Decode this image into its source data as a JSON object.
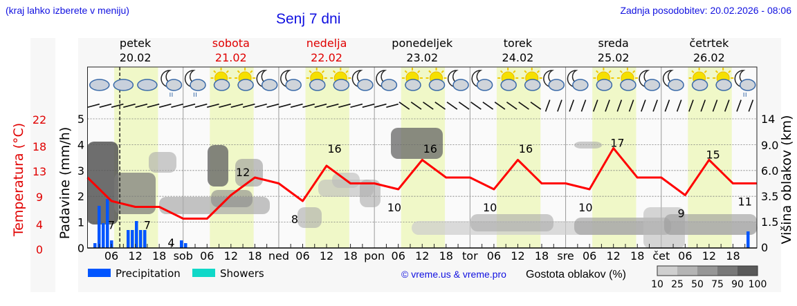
{
  "header": {
    "menu_hint": "(kraj lahko izberete v meniju)",
    "title": "Senj 7 dni",
    "last_update": "Zadnja posodobitev: 20.02.2026 - 08:06"
  },
  "days": [
    {
      "name": "petek",
      "date": "20.02",
      "weekend": false,
      "short": ""
    },
    {
      "name": "sobota",
      "date": "21.02",
      "weekend": true,
      "short": "sob"
    },
    {
      "name": "nedelja",
      "date": "22.02",
      "weekend": true,
      "short": "ned"
    },
    {
      "name": "ponedeljek",
      "date": "23.02",
      "weekend": false,
      "short": "pon"
    },
    {
      "name": "torek",
      "date": "24.02",
      "weekend": false,
      "short": "tor"
    },
    {
      "name": "sreda",
      "date": "25.02",
      "weekend": false,
      "short": "sre"
    },
    {
      "name": "četrtek",
      "date": "26.02",
      "weekend": false,
      "short": "čet"
    }
  ],
  "hour_ticks": [
    "06",
    "12",
    "18"
  ],
  "weather_icons": [
    "rain-cloud",
    "rain-cloud",
    "rain-cloud",
    "moon-cloud-rain",
    "moon-cloud-rain",
    "sun-cloud",
    "sun-cloud",
    "moon-cloud",
    "moon-cloud",
    "sun-cloud",
    "sun-cloud",
    "moon-cloud",
    "moon-cloud",
    "sun-cloud",
    "sun-cloud",
    "moon-cloud",
    "moon-cloud",
    "sun-cloud",
    "sun-cloud",
    "moon-cloud",
    "moon-cloud",
    "sun-cloud",
    "sun-cloud",
    "moon-cloud",
    "moon-cloud",
    "sun-cloud",
    "sun-cloud",
    "moon-cloud-rain"
  ],
  "axes": {
    "temp_label": "Temperatura (°C)",
    "temp_ticks": [
      "22",
      "18",
      "13",
      "9",
      "4",
      "0"
    ],
    "precip_label": "Padavine (mm/h)",
    "precip_ticks": [
      "5",
      "4",
      "3",
      "2",
      "1",
      "0"
    ],
    "cloud_label": "Višina oblakov (km)",
    "cloud_ticks": [
      "14",
      "9.0",
      "6.0",
      "3.5",
      "1.5",
      "0"
    ]
  },
  "legend": {
    "precipitation": "Precipitation",
    "showers": "Showers",
    "copyright": "© vreme.us & vreme.pro",
    "cloud_density": "Gostota oblakov (%)",
    "density_ticks": [
      "10",
      "25",
      "50",
      "75",
      "90",
      "100"
    ],
    "colors": {
      "precipitation": "#0055ff",
      "showers": "#10d8c8",
      "temperature": "#ff0000"
    }
  },
  "current_time_marker": "20.02 08:06",
  "chart_data": {
    "type": "line",
    "title": "Senj 7 dni",
    "xlabel": "",
    "ylabel": "Temperatura (°C)",
    "x": [
      "20.02 00",
      "20.02 06",
      "20.02 12",
      "20.02 18",
      "21.02 00",
      "21.02 06",
      "21.02 12",
      "21.02 18",
      "22.02 00",
      "22.02 06",
      "22.02 12",
      "22.02 18",
      "23.02 00",
      "23.02 06",
      "23.02 12",
      "23.02 18",
      "24.02 00",
      "24.02 06",
      "24.02 12",
      "24.02 18",
      "25.02 00",
      "25.02 06",
      "25.02 12",
      "25.02 18",
      "26.02 00",
      "26.02 06",
      "26.02 12",
      "26.02 18",
      "26.02 24"
    ],
    "series": [
      {
        "name": "Temperature",
        "values": [
          12,
          8,
          7,
          7,
          5,
          5,
          9,
          12,
          11,
          8,
          14,
          11,
          11,
          10,
          15,
          12,
          12,
          10,
          15,
          11,
          11,
          10,
          17,
          12,
          12,
          9,
          15,
          11,
          11
        ]
      },
      {
        "name": "Precipitation (mm/h)",
        "values": [
          0.3,
          1.9,
          0.3,
          0,
          0.1,
          0,
          0,
          0,
          0,
          0,
          0,
          0,
          0,
          0,
          0,
          0,
          0,
          0,
          0,
          0,
          0,
          0,
          0,
          0,
          0,
          0,
          0,
          0,
          0.6
        ]
      }
    ],
    "labels": [
      {
        "value": 7,
        "at": "20.02 06"
      },
      {
        "value": 7,
        "at": "20.02 15"
      },
      {
        "value": 4,
        "at": "20.02 21"
      },
      {
        "value": 12,
        "at": "21.02 15"
      },
      {
        "value": 8,
        "at": "22.02 04"
      },
      {
        "value": 16,
        "at": "22.02 14"
      },
      {
        "value": 10,
        "at": "23.02 05"
      },
      {
        "value": 16,
        "at": "23.02 14"
      },
      {
        "value": 10,
        "at": "24.02 05"
      },
      {
        "value": 16,
        "at": "24.02 14"
      },
      {
        "value": 10,
        "at": "25.02 05"
      },
      {
        "value": 17,
        "at": "25.02 13"
      },
      {
        "value": 9,
        "at": "26.02 05"
      },
      {
        "value": 15,
        "at": "26.02 13"
      },
      {
        "value": 11,
        "at": "26.02 21"
      }
    ],
    "ylim": [
      0,
      22
    ],
    "grid": true,
    "legend_position": "bottom"
  }
}
